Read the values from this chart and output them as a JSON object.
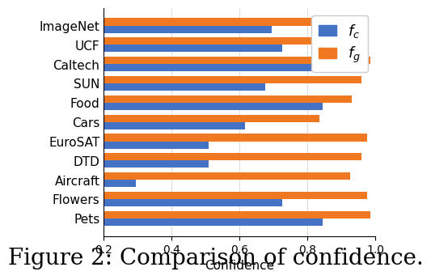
{
  "categories": [
    "ImageNet",
    "UCF",
    "Caltech",
    "SUN",
    "Food",
    "Cars",
    "EuroSAT",
    "DTD",
    "Aircraft",
    "Flowers",
    "Pets"
  ],
  "fc_values": [
    0.695,
    0.725,
    0.895,
    0.675,
    0.845,
    0.615,
    0.51,
    0.51,
    0.295,
    0.725,
    0.845
  ],
  "fg_values": [
    0.975,
    0.975,
    0.985,
    0.96,
    0.93,
    0.835,
    0.975,
    0.96,
    0.925,
    0.975,
    0.985
  ],
  "fc_color": "#4472c4",
  "fg_color": "#f07820",
  "xlabel": "Confidence",
  "title": "Figure 2: Comparison of confidence.",
  "xlim": [
    0.2,
    1.0
  ],
  "xticks": [
    0.2,
    0.4,
    0.6,
    0.8,
    1.0
  ],
  "bar_height": 0.38,
  "legend_fc_label": "$f_c$",
  "legend_fg_label": "$f_g$",
  "title_fontsize": 20,
  "axis_label_fontsize": 11,
  "tick_fontsize": 10,
  "legend_fontsize": 13,
  "ytick_fontsize": 11
}
